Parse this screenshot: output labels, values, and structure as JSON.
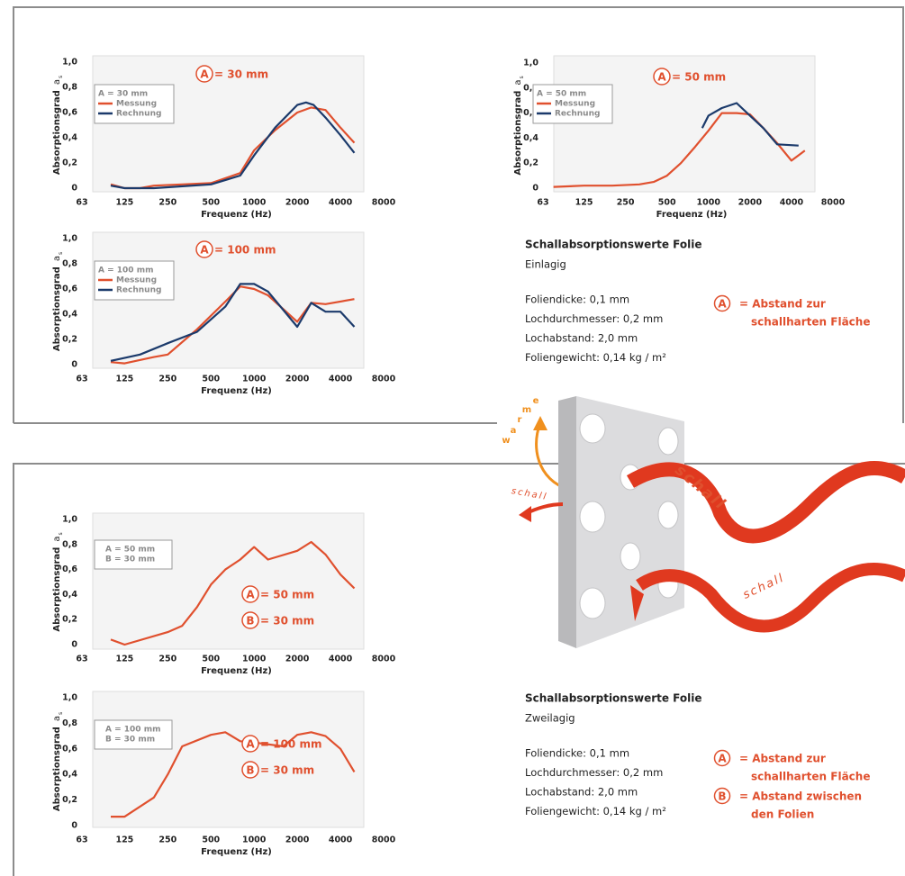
{
  "chart_data": [
    {
      "type": "line",
      "ylabel": "Absorptionsgrad",
      "ylabel_symbol": "a",
      "ylabel_symbol_sub": "s",
      "xlabel": "Frequenz (Hz)",
      "xscale": "log",
      "xlim": [
        63,
        8000
      ],
      "xticks": [
        63,
        125,
        250,
        500,
        1000,
        2000,
        4000,
        8000
      ],
      "ylim": [
        0,
        1.0
      ],
      "yticks": [
        0,
        {
          "value": 0.2,
          "label": "0,2"
        },
        {
          "value": 0.4,
          "label": "0,4"
        },
        {
          "value": 0.6,
          "label": "0,6"
        },
        {
          "value": 0.8,
          "label": "0,8"
        },
        {
          "value": 1.0,
          "label": "1,0"
        }
      ],
      "legend_title": [
        "A = 30 mm"
      ],
      "series": [
        {
          "name": "Messung",
          "color": "#e0502e",
          "x": [
            100,
            125,
            160,
            200,
            315,
            500,
            800,
            1000,
            1400,
            2000,
            2500,
            3150,
            4000,
            5000
          ],
          "values": [
            0.03,
            0,
            0,
            0.02,
            0.03,
            0.04,
            0.12,
            0.3,
            0.46,
            0.6,
            0.64,
            0.62,
            0.48,
            0.36
          ]
        },
        {
          "name": "Rechnung",
          "color": "#1b3a6b",
          "x": [
            100,
            125,
            200,
            500,
            800,
            1000,
            1400,
            2000,
            2300,
            2600,
            3150,
            4000,
            5000
          ],
          "values": [
            0.02,
            0,
            0,
            0.03,
            0.1,
            0.26,
            0.48,
            0.66,
            0.68,
            0.66,
            0.56,
            0.42,
            0.28
          ]
        }
      ],
      "annotations": [
        {
          "badge": "A",
          "text": "= 30 mm"
        }
      ]
    },
    {
      "type": "line",
      "ylabel": "Absorptionsgrad",
      "ylabel_symbol": "a",
      "ylabel_symbol_sub": "s",
      "xlabel": "Frequenz (Hz)",
      "xscale": "log",
      "xlim": [
        63,
        8000
      ],
      "xticks": [
        63,
        125,
        250,
        500,
        1000,
        2000,
        4000,
        8000
      ],
      "ylim": [
        0,
        1.0
      ],
      "yticks": [
        0,
        {
          "value": 0.2,
          "label": "0,2"
        },
        {
          "value": 0.4,
          "label": "0,4"
        },
        {
          "value": 0.6,
          "label": "0,6"
        },
        {
          "value": 0.8,
          "label": "0,8"
        },
        {
          "value": 1.0,
          "label": "1,0"
        }
      ],
      "legend_title": [
        "A = 50 mm"
      ],
      "series": [
        {
          "name": "Messung",
          "color": "#e0502e",
          "x": [
            75,
            125,
            200,
            315,
            400,
            500,
            630,
            800,
            1000,
            1250,
            1600,
            2000,
            2500,
            3150,
            4000,
            5000
          ],
          "values": [
            0.01,
            0.02,
            0.02,
            0.03,
            0.05,
            0.1,
            0.2,
            0.33,
            0.46,
            0.6,
            0.6,
            0.59,
            0.48,
            0.36,
            0.22,
            0.3
          ]
        },
        {
          "name": "Rechnung",
          "color": "#1b3a6b",
          "x": [
            900,
            1000,
            1250,
            1600,
            2000,
            2500,
            3150,
            4500
          ],
          "values": [
            0.48,
            0.58,
            0.64,
            0.68,
            0.58,
            0.48,
            0.35,
            0.34
          ]
        }
      ],
      "annotations": [
        {
          "badge": "A",
          "text": "= 50 mm"
        }
      ]
    },
    {
      "type": "line",
      "ylabel": "Absorptionsgrad",
      "ylabel_symbol": "a",
      "ylabel_symbol_sub": "s",
      "xlabel": "Frequenz (Hz)",
      "xscale": "log",
      "xlim": [
        63,
        8000
      ],
      "xticks": [
        63,
        125,
        250,
        500,
        1000,
        2000,
        4000,
        8000
      ],
      "ylim": [
        0,
        1.0
      ],
      "yticks": [
        0,
        {
          "value": 0.2,
          "label": "0,2"
        },
        {
          "value": 0.4,
          "label": "0,4"
        },
        {
          "value": 0.6,
          "label": "0,6"
        },
        {
          "value": 0.8,
          "label": "0,8"
        },
        {
          "value": 1.0,
          "label": "1,0"
        }
      ],
      "legend_title": [
        "A = 100 mm"
      ],
      "series": [
        {
          "name": "Messung",
          "color": "#e0502e",
          "x": [
            100,
            125,
            200,
            250,
            400,
            630,
            800,
            1000,
            1250,
            2000,
            2500,
            3150,
            5000
          ],
          "values": [
            0.02,
            0.01,
            0.06,
            0.08,
            0.28,
            0.5,
            0.62,
            0.6,
            0.55,
            0.34,
            0.49,
            0.48,
            0.52
          ]
        },
        {
          "name": "Rechnung",
          "color": "#1b3a6b",
          "x": [
            100,
            160,
            250,
            400,
            630,
            800,
            1000,
            1250,
            2000,
            2500,
            3150,
            4000,
            5000
          ],
          "values": [
            0.03,
            0.08,
            0.17,
            0.26,
            0.46,
            0.64,
            0.64,
            0.58,
            0.3,
            0.49,
            0.42,
            0.42,
            0.3
          ]
        }
      ],
      "annotations": [
        {
          "badge": "A",
          "text": "= 100 mm"
        }
      ]
    },
    {
      "type": "line",
      "ylabel": "Absorptionsgrad",
      "ylabel_symbol": "a",
      "ylabel_symbol_sub": "s",
      "xlabel": "Frequenz (Hz)",
      "xscale": "log",
      "xlim": [
        63,
        8000
      ],
      "xticks": [
        63,
        125,
        250,
        500,
        1000,
        2000,
        4000,
        8000
      ],
      "ylim": [
        0,
        1.0
      ],
      "yticks": [
        0,
        {
          "value": 0.2,
          "label": "0,2"
        },
        {
          "value": 0.4,
          "label": "0,4"
        },
        {
          "value": 0.6,
          "label": "0,6"
        },
        {
          "value": 0.8,
          "label": "0,8"
        },
        {
          "value": 1.0,
          "label": "1,0"
        }
      ],
      "legend_title": [
        "A = 50 mm",
        "B = 30 mm"
      ],
      "series": [
        {
          "color": "#e0502e",
          "x": [
            100,
            125,
            250,
            315,
            400,
            500,
            630,
            800,
            1000,
            1250,
            2000,
            2500,
            3150,
            4000,
            5000
          ],
          "values": [
            0.04,
            0,
            0.1,
            0.15,
            0.3,
            0.48,
            0.6,
            0.68,
            0.78,
            0.68,
            0.75,
            0.82,
            0.72,
            0.56,
            0.45
          ]
        }
      ],
      "annotations": [
        {
          "badge": "A",
          "text": "= 50 mm"
        },
        {
          "badge": "B",
          "text": "= 30 mm"
        }
      ]
    },
    {
      "type": "line",
      "ylabel": "Absorptionsgrad",
      "ylabel_symbol": "a",
      "ylabel_symbol_sub": "s",
      "xlabel": "Frequenz (Hz)",
      "xscale": "log",
      "xlim": [
        63,
        8000
      ],
      "xticks": [
        63,
        125,
        250,
        500,
        1000,
        2000,
        4000,
        8000
      ],
      "ylim": [
        0,
        1.0
      ],
      "yticks": [
        0,
        {
          "value": 0.2,
          "label": "0,2"
        },
        {
          "value": 0.4,
          "label": "0,4"
        },
        {
          "value": 0.6,
          "label": "0,6"
        },
        {
          "value": 0.8,
          "label": "0,8"
        },
        {
          "value": 1.0,
          "label": "1,0"
        }
      ],
      "legend_title": [
        "A = 100 mm",
        "B =  30 mm"
      ],
      "series": [
        {
          "color": "#e0502e",
          "x": [
            100,
            125,
            200,
            250,
            315,
            500,
            630,
            800,
            1000,
            1600,
            2000,
            2500,
            3150,
            4000,
            5000
          ],
          "values": [
            0.07,
            0.07,
            0.22,
            0.4,
            0.62,
            0.71,
            0.73,
            0.66,
            0.65,
            0.62,
            0.71,
            0.73,
            0.7,
            0.6,
            0.42
          ]
        }
      ],
      "annotations": [
        {
          "badge": "A",
          "text": "= 100 mm"
        },
        {
          "badge": "B",
          "text": "= 30 mm"
        }
      ]
    }
  ],
  "panels": [
    {
      "title": "Schallabsorptionswerte Folie",
      "subtitle": "Einlagig",
      "specs": [
        "Foliendicke: 0,1 mm",
        "Lochdurchmesser: 0,2 mm",
        "Lochabstand: 2,0 mm",
        "Foliengewicht: 0,14 kg / m²"
      ],
      "notes": [
        {
          "badge": "A",
          "lines": [
            "= Abstand zur",
            "schallharten Fläche"
          ]
        }
      ]
    },
    {
      "title": "Schallabsorptionswerte Folie",
      "subtitle": "Zweilagig",
      "specs": [
        "Foliendicke: 0,1 mm",
        "Lochdurchmesser: 0,2 mm",
        "Lochabstand: 2,0 mm",
        "Foliengewicht: 0,14 kg / m²"
      ],
      "notes": [
        {
          "badge": "A",
          "lines": [
            "= Abstand zur",
            "schallharten Fläche"
          ]
        },
        {
          "badge": "B",
          "lines": [
            "= Abstand zwischen",
            "den Folien"
          ]
        }
      ]
    }
  ],
  "illustration": {
    "labels": [
      "schall",
      "schall",
      "schall"
    ],
    "waerme": [
      "w",
      "a",
      "r",
      "m",
      "e"
    ]
  }
}
